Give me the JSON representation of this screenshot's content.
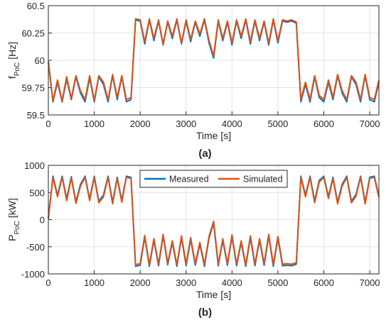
{
  "chart_data": [
    {
      "type": "line",
      "xlabel": "Time [s]",
      "ylabel": "f",
      "ylabel_sub": "PoC",
      "ylabel_unit": "[Hz]",
      "caption": "(a)",
      "x": [
        0,
        100,
        200,
        300,
        400,
        500,
        600,
        700,
        800,
        900,
        1000,
        1100,
        1200,
        1300,
        1400,
        1500,
        1600,
        1700,
        1800,
        1900,
        2000,
        2100,
        2200,
        2300,
        2400,
        2500,
        2600,
        2700,
        2800,
        2900,
        3000,
        3100,
        3200,
        3300,
        3400,
        3500,
        3600,
        3700,
        3800,
        3900,
        4000,
        4100,
        4200,
        4300,
        4400,
        4500,
        4600,
        4700,
        4800,
        4900,
        5000,
        5100,
        5200,
        5300,
        5400,
        5500,
        5600,
        5700,
        5800,
        5900,
        6000,
        6100,
        6200,
        6300,
        6400,
        6500,
        6600,
        6700,
        6800,
        6900,
        7000,
        7100,
        7200
      ],
      "series": [
        {
          "color": "#0072bd",
          "values": [
            59.98,
            59.62,
            59.8,
            59.62,
            59.83,
            59.64,
            59.85,
            59.7,
            59.62,
            59.84,
            59.62,
            59.85,
            59.78,
            59.62,
            59.86,
            59.64,
            59.85,
            59.62,
            59.64,
            60.37,
            60.36,
            60.15,
            60.37,
            60.18,
            60.36,
            60.14,
            60.35,
            60.2,
            60.37,
            60.15,
            60.36,
            60.17,
            60.35,
            60.22,
            60.37,
            60.16,
            60.02,
            60.36,
            60.18,
            60.35,
            60.14,
            60.36,
            60.2,
            60.37,
            60.15,
            60.36,
            60.18,
            60.35,
            60.14,
            60.37,
            60.16,
            60.36,
            60.35,
            60.36,
            60.34,
            59.62,
            59.78,
            59.62,
            59.85,
            59.66,
            59.62,
            59.8,
            59.64,
            59.86,
            59.7,
            59.62,
            59.85,
            59.78,
            59.62,
            59.86,
            59.64,
            59.62,
            59.8
          ]
        },
        {
          "color": "#d95319",
          "values": [
            59.99,
            59.63,
            59.82,
            59.63,
            59.85,
            59.65,
            59.86,
            59.72,
            59.64,
            59.86,
            59.63,
            59.86,
            59.8,
            59.64,
            59.87,
            59.66,
            59.86,
            59.64,
            59.66,
            60.38,
            60.37,
            60.17,
            60.38,
            60.2,
            60.37,
            60.15,
            60.36,
            60.22,
            60.38,
            60.16,
            60.37,
            60.19,
            60.36,
            60.24,
            60.38,
            60.18,
            60.04,
            60.37,
            60.2,
            60.36,
            60.16,
            60.37,
            60.22,
            60.38,
            60.17,
            60.37,
            60.2,
            60.36,
            60.16,
            60.38,
            60.18,
            60.37,
            60.36,
            60.37,
            60.35,
            59.64,
            59.8,
            59.64,
            59.86,
            59.68,
            59.64,
            59.82,
            59.66,
            59.87,
            59.72,
            59.64,
            59.86,
            59.8,
            59.64,
            59.87,
            59.66,
            59.64,
            59.82
          ]
        }
      ],
      "xlim": [
        0,
        7200
      ],
      "xticks": [
        0,
        1000,
        2000,
        3000,
        4000,
        5000,
        6000,
        7000
      ],
      "ylim": [
        59.5,
        60.5
      ],
      "yticks": [
        59.5,
        59.75,
        60,
        60.25,
        60.5
      ],
      "grid": true
    },
    {
      "type": "line",
      "xlabel": "Time [s]",
      "ylabel": "P",
      "ylabel_sub": "PoC",
      "ylabel_unit": "[kW]",
      "caption": "(b)",
      "legend": "upper center",
      "x": [
        0,
        100,
        200,
        300,
        400,
        500,
        600,
        700,
        800,
        900,
        1000,
        1100,
        1200,
        1300,
        1400,
        1500,
        1600,
        1700,
        1800,
        1900,
        2000,
        2100,
        2200,
        2300,
        2400,
        2500,
        2600,
        2700,
        2800,
        2900,
        3000,
        3100,
        3200,
        3300,
        3400,
        3500,
        3600,
        3700,
        3800,
        3900,
        4000,
        4100,
        4200,
        4300,
        4400,
        4500,
        4600,
        4700,
        4800,
        4900,
        5000,
        5100,
        5200,
        5300,
        5400,
        5500,
        5600,
        5700,
        5800,
        5900,
        6000,
        6100,
        6200,
        6300,
        6400,
        6500,
        6600,
        6700,
        6800,
        6900,
        7000,
        7100,
        7200
      ],
      "series": [
        {
          "name": "Measured",
          "color": "#0072bd",
          "values": [
            20,
            800,
            450,
            800,
            380,
            790,
            330,
            650,
            800,
            380,
            800,
            340,
            450,
            800,
            320,
            780,
            350,
            800,
            780,
            -860,
            -840,
            -320,
            -860,
            -380,
            -850,
            -300,
            -830,
            -420,
            -860,
            -330,
            -850,
            -360,
            -840,
            -450,
            -860,
            -340,
            -60,
            -850,
            -380,
            -840,
            -310,
            -850,
            -420,
            -860,
            -330,
            -850,
            -380,
            -840,
            -300,
            -860,
            -340,
            -850,
            -840,
            -850,
            -820,
            800,
            450,
            800,
            340,
            720,
            800,
            420,
            780,
            320,
            650,
            800,
            340,
            460,
            800,
            320,
            780,
            800,
            440
          ]
        },
        {
          "name": "Simulated",
          "color": "#d95319",
          "values": [
            40,
            780,
            420,
            780,
            350,
            770,
            300,
            620,
            780,
            350,
            780,
            310,
            420,
            780,
            290,
            760,
            320,
            780,
            760,
            -830,
            -810,
            -290,
            -830,
            -350,
            -820,
            -270,
            -800,
            -390,
            -830,
            -300,
            -820,
            -330,
            -810,
            -420,
            -830,
            -310,
            -30,
            -820,
            -350,
            -810,
            -280,
            -820,
            -390,
            -830,
            -300,
            -820,
            -350,
            -810,
            -270,
            -830,
            -310,
            -820,
            -810,
            -820,
            -790,
            780,
            420,
            780,
            310,
            690,
            780,
            390,
            760,
            290,
            620,
            780,
            310,
            430,
            780,
            290,
            760,
            780,
            410
          ]
        }
      ],
      "xlim": [
        0,
        7200
      ],
      "xticks": [
        0,
        1000,
        2000,
        3000,
        4000,
        5000,
        6000,
        7000
      ],
      "ylim": [
        -1000,
        1000
      ],
      "yticks": [
        -1000,
        -500,
        0,
        500,
        1000
      ],
      "grid": true
    }
  ]
}
